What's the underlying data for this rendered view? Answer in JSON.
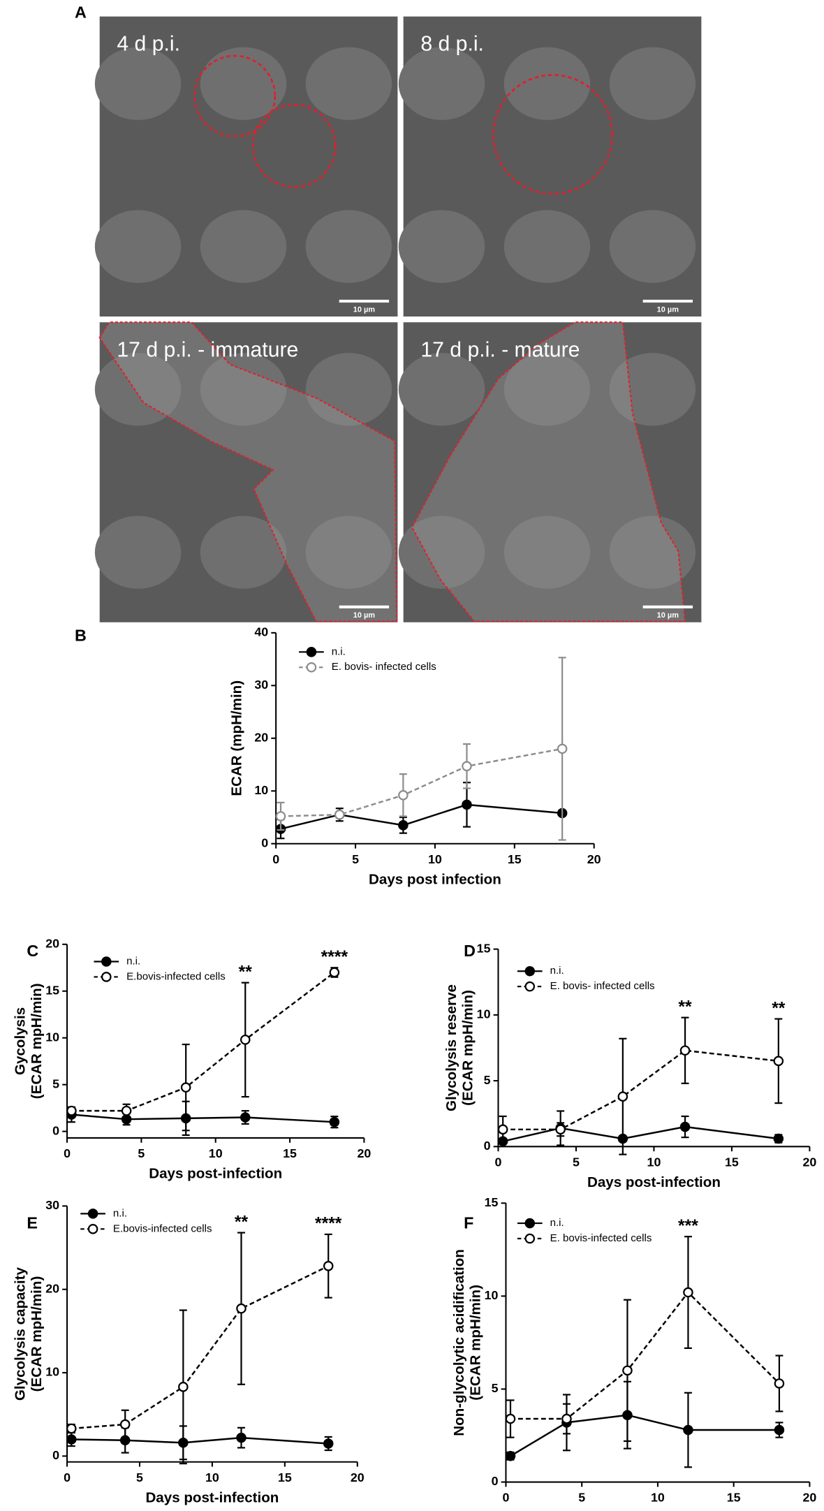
{
  "panel_a": {
    "label": "A",
    "images": [
      {
        "caption": "4 d p.i.",
        "scale_bar": "10 µm"
      },
      {
        "caption": "8 d p.i.",
        "scale_bar": "10 µm"
      },
      {
        "caption": "17 d p.i. - immature",
        "scale_bar": "10 µm"
      },
      {
        "caption": "17 d p.i. - mature",
        "scale_bar": "10 µm"
      }
    ]
  },
  "chart_data": [
    {
      "type": "line",
      "label": "B",
      "ylabel": "ECAR (mpH/min)",
      "xlabel": "Days post infection",
      "xlim": [
        0,
        20
      ],
      "xticks": [
        0,
        5,
        10,
        15,
        20
      ],
      "ylim": [
        0,
        40
      ],
      "yticks": [
        0,
        10,
        20,
        30,
        40
      ],
      "legend": "upper left",
      "x": [
        0.3,
        4,
        8,
        12,
        18
      ],
      "series": [
        {
          "name": "n.i.",
          "color": "#000000",
          "dashed": false,
          "open": false,
          "values": [
            2.8,
            5.5,
            3.5,
            7.4,
            5.8
          ],
          "errors": [
            1.8,
            1.2,
            1.5,
            4.2,
            0.5
          ]
        },
        {
          "name": "E. bovis- infected cells",
          "color": "#8c8c8c",
          "dashed": true,
          "open": true,
          "values": [
            5.2,
            5.5,
            9.2,
            14.7,
            18
          ],
          "errors": [
            2.6,
            0.5,
            4,
            4.2,
            17.3
          ]
        }
      ]
    },
    {
      "type": "line",
      "label": "C",
      "ylabel": [
        "Gycolysis",
        "(ECAR mpH/min)"
      ],
      "xlabel": "Days post-infection",
      "xlim": [
        0,
        20
      ],
      "xticks": [
        0,
        5,
        10,
        15,
        20
      ],
      "ylim": [
        -0.7,
        20
      ],
      "yticks": [
        0,
        5,
        10,
        15,
        20
      ],
      "legend": "upper left",
      "x": [
        0.3,
        4,
        8,
        12,
        18
      ],
      "series": [
        {
          "name": "n.i.",
          "color": "#000000",
          "dashed": false,
          "open": false,
          "values": [
            1.8,
            1.3,
            1.4,
            1.5,
            1.0
          ],
          "errors": [
            0.8,
            0.6,
            1.8,
            0.7,
            0.6
          ]
        },
        {
          "name": "E.bovis-infected cells",
          "color": "#000000",
          "dashed": true,
          "open": true,
          "values": [
            2.2,
            2.2,
            4.7,
            9.8,
            17.0
          ],
          "errors": [
            0.3,
            0.7,
            4.6,
            6.1,
            0.5
          ],
          "value_annotations": [
            null,
            null,
            null,
            "**",
            "****"
          ]
        }
      ]
    },
    {
      "type": "line",
      "label": "D",
      "ylabel": [
        "Glycolysis reserve",
        "(ECAR mpH/min)"
      ],
      "xlabel": "Days post-infection",
      "xlim": [
        0,
        20
      ],
      "xticks": [
        0,
        5,
        10,
        15,
        20
      ],
      "ylim": [
        0,
        15
      ],
      "yticks": [
        0,
        5,
        10,
        15
      ],
      "legend": "upper left",
      "x": [
        0.3,
        4,
        8,
        12,
        18
      ],
      "series": [
        {
          "name": "n.i.",
          "color": "#000000",
          "dashed": false,
          "open": false,
          "values": [
            0.4,
            1.4,
            0.6,
            1.5,
            0.6
          ],
          "errors": [
            0.2,
            1.3,
            0.2,
            0.8,
            0.3
          ]
        },
        {
          "name": "E. bovis- infected cells",
          "color": "#000000",
          "dashed": true,
          "open": true,
          "values": [
            1.3,
            1.3,
            3.8,
            7.3,
            6.5
          ],
          "errors": [
            1.0,
            0.5,
            4.4,
            2.5,
            3.2
          ],
          "value_annotations": [
            null,
            null,
            null,
            "**",
            "**"
          ]
        }
      ]
    },
    {
      "type": "line",
      "label": "E",
      "ylabel": [
        "Glycolysis capacity",
        "(ECAR mpH/min)"
      ],
      "xlabel": "Days post-infection",
      "xlim": [
        0,
        20
      ],
      "xticks": [
        0,
        5,
        10,
        15,
        20
      ],
      "ylim": [
        -0.7,
        30
      ],
      "yticks": [
        0,
        10,
        20,
        30
      ],
      "legend": "upper left",
      "x": [
        0.3,
        4,
        8,
        12,
        18
      ],
      "series": [
        {
          "name": "n.i.",
          "color": "#000000",
          "dashed": false,
          "open": false,
          "values": [
            2.0,
            1.9,
            1.6,
            2.2,
            1.5
          ],
          "errors": [
            0.8,
            1.5,
            2.0,
            1.2,
            0.8
          ]
        },
        {
          "name": "E.bovis-infected cells",
          "color": "#000000",
          "dashed": true,
          "open": true,
          "values": [
            3.3,
            3.8,
            8.3,
            17.7,
            22.8
          ],
          "errors": [
            0.5,
            1.7,
            9.2,
            9.1,
            3.8
          ],
          "value_annotations": [
            null,
            null,
            null,
            "**",
            "****"
          ]
        }
      ]
    },
    {
      "type": "line",
      "label": "F",
      "ylabel": [
        "Non-glycolytic acidification",
        "(ECAR mpH/min)"
      ],
      "xlabel": "Days post-infection",
      "xlim": [
        0,
        20
      ],
      "xticks": [
        0,
        5,
        10,
        15,
        20
      ],
      "ylim": [
        0,
        15
      ],
      "yticks": [
        0,
        5,
        10,
        15
      ],
      "legend": "upper left",
      "x": [
        0.3,
        4,
        8,
        12,
        18
      ],
      "series": [
        {
          "name": "n.i.",
          "color": "#000000",
          "dashed": false,
          "open": false,
          "values": [
            1.4,
            3.2,
            3.6,
            2.8,
            2.8
          ],
          "errors": [
            0.2,
            1.5,
            1.8,
            2.0,
            0.4
          ]
        },
        {
          "name": "E. bovis-infected cells",
          "color": "#000000",
          "dashed": true,
          "open": true,
          "values": [
            3.4,
            3.4,
            6.0,
            10.2,
            5.3
          ],
          "errors": [
            1.0,
            0.8,
            3.8,
            3.0,
            1.5
          ],
          "value_annotations": [
            null,
            null,
            null,
            "***",
            null
          ]
        }
      ]
    }
  ]
}
